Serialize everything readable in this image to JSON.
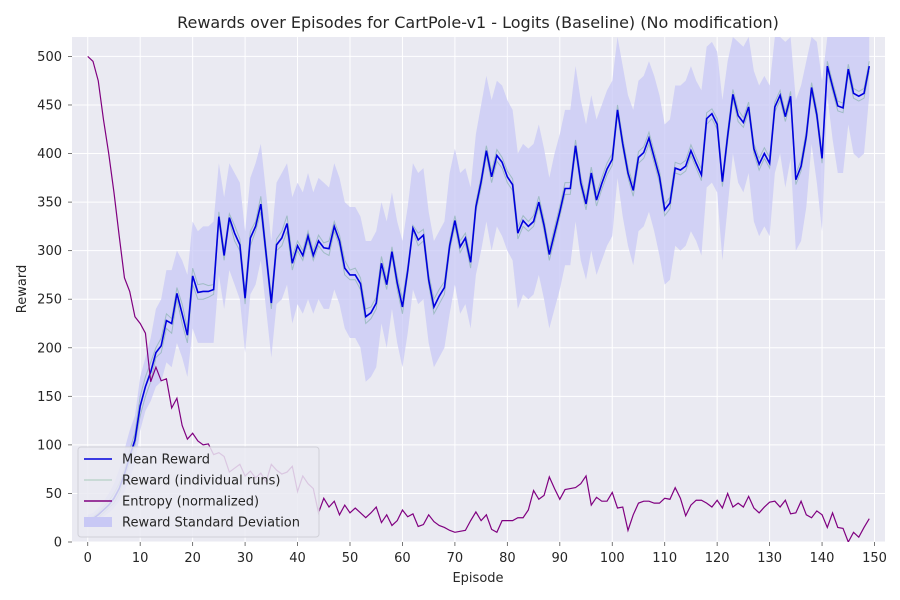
{
  "chart_data": {
    "type": "line",
    "title": "Rewards over Episodes for CartPole-v1 - Logits (Baseline) (No modification)",
    "xlabel": "Episode",
    "ylabel": "Reward",
    "xlim": [
      -3,
      152
    ],
    "ylim": [
      0,
      520
    ],
    "xticks": [
      0,
      10,
      20,
      30,
      40,
      50,
      60,
      70,
      80,
      90,
      100,
      110,
      120,
      130,
      140,
      150
    ],
    "yticks": [
      0,
      50,
      100,
      150,
      200,
      250,
      300,
      350,
      400,
      450,
      500
    ],
    "grid": true,
    "legend_position": "lower-left",
    "colors": {
      "background": "#eaeaf2",
      "grid": "#ffffff",
      "mean": "#0000dd",
      "runs": "#2e8b57",
      "entropy": "#800080",
      "std_fill": "#c8c8f5"
    },
    "legend": [
      {
        "label": "Mean Reward",
        "kind": "line",
        "color": "#0000dd"
      },
      {
        "label": "Reward (individual runs)",
        "kind": "thin-line",
        "color": "#2e8b57"
      },
      {
        "label": "Entropy (normalized)",
        "kind": "line",
        "color": "#800080"
      },
      {
        "label": "Reward Standard Deviation",
        "kind": "patch",
        "color": "#c8c8f5"
      }
    ],
    "episodes_count": 150,
    "series": [
      {
        "name": "Mean Reward",
        "values": [
          22,
          24,
          28,
          33,
          38,
          45,
          55,
          70,
          88,
          105,
          140,
          160,
          175,
          195,
          202,
          228,
          225,
          256,
          235,
          213,
          274,
          257,
          258,
          258,
          260,
          335,
          295,
          334,
          318,
          306,
          251,
          313,
          325,
          348,
          297,
          246,
          306,
          313,
          328,
          287,
          305,
          295,
          315,
          295,
          310,
          303,
          302,
          325,
          310,
          282,
          275,
          275,
          266,
          232,
          236,
          246,
          287,
          265,
          299,
          267,
          242,
          279,
          323,
          311,
          316,
          270,
          242,
          253,
          262,
          305,
          331,
          304,
          313,
          288,
          345,
          371,
          403,
          376,
          398,
          391,
          376,
          368,
          318,
          331,
          325,
          330,
          350,
          326,
          296,
          318,
          340,
          364,
          364,
          408,
          370,
          348,
          380,
          352,
          369,
          384,
          394,
          445,
          410,
          380,
          362,
          396,
          401,
          416,
          396,
          376,
          342,
          349,
          385,
          383,
          387,
          403,
          390,
          378,
          436,
          441,
          430,
          371,
          418,
          461,
          439,
          432,
          448,
          405,
          389,
          400,
          390,
          448,
          460,
          438,
          459,
          373,
          387,
          418,
          468,
          440,
          395,
          490,
          469,
          449,
          447,
          487,
          462,
          459,
          462,
          490
        ]
      },
      {
        "name": "Reward Standard Deviation",
        "upper": [
          28,
          30,
          35,
          42,
          50,
          60,
          75,
          95,
          115,
          130,
          170,
          190,
          210,
          240,
          250,
          280,
          280,
          300,
          290,
          275,
          330,
          320,
          325,
          325,
          330,
          390,
          355,
          390,
          380,
          370,
          320,
          375,
          390,
          410,
          360,
          310,
          370,
          380,
          390,
          355,
          370,
          360,
          380,
          360,
          375,
          370,
          365,
          390,
          375,
          350,
          345,
          345,
          335,
          310,
          310,
          320,
          350,
          330,
          360,
          330,
          310,
          345,
          390,
          380,
          385,
          340,
          310,
          320,
          330,
          380,
          405,
          380,
          385,
          365,
          420,
          450,
          480,
          455,
          475,
          470,
          455,
          445,
          400,
          410,
          405,
          410,
          430,
          405,
          375,
          400,
          420,
          445,
          445,
          490,
          455,
          430,
          460,
          435,
          450,
          465,
          475,
          520,
          490,
          460,
          445,
          475,
          480,
          495,
          480,
          460,
          430,
          435,
          470,
          470,
          475,
          490,
          475,
          465,
          510,
          515,
          505,
          455,
          495,
          520,
          515,
          510,
          520,
          485,
          470,
          480,
          470,
          520,
          520,
          515,
          520,
          455,
          470,
          495,
          520,
          515,
          475,
          520,
          520,
          520,
          520,
          520,
          520,
          520,
          520,
          520
        ],
        "lower": [
          18,
          20,
          23,
          26,
          30,
          35,
          42,
          52,
          65,
          80,
          115,
          135,
          145,
          160,
          165,
          185,
          180,
          205,
          190,
          170,
          220,
          205,
          205,
          205,
          205,
          275,
          240,
          280,
          265,
          250,
          195,
          255,
          265,
          290,
          240,
          190,
          245,
          250,
          265,
          225,
          245,
          235,
          250,
          235,
          250,
          240,
          240,
          260,
          245,
          220,
          210,
          210,
          200,
          165,
          170,
          180,
          225,
          200,
          240,
          205,
          180,
          215,
          260,
          245,
          250,
          205,
          180,
          190,
          200,
          235,
          265,
          235,
          245,
          220,
          275,
          300,
          330,
          300,
          325,
          315,
          300,
          290,
          240,
          255,
          250,
          255,
          275,
          250,
          220,
          240,
          260,
          285,
          285,
          330,
          290,
          270,
          300,
          275,
          290,
          305,
          315,
          375,
          335,
          305,
          285,
          320,
          325,
          340,
          320,
          295,
          265,
          270,
          305,
          300,
          305,
          320,
          310,
          295,
          365,
          370,
          360,
          290,
          345,
          400,
          370,
          360,
          380,
          330,
          315,
          325,
          315,
          380,
          400,
          365,
          395,
          300,
          310,
          345,
          410,
          370,
          320,
          460,
          415,
          380,
          380,
          430,
          400,
          395,
          400,
          460
        ]
      },
      {
        "name": "Reward (individual runs)",
        "runs": [
          [
            20,
            22,
            25,
            30,
            35,
            40,
            50,
            65,
            82,
            100,
            130,
            150,
            165,
            190,
            195,
            220,
            215,
            250,
            225,
            205,
            265,
            250,
            250,
            252,
            255,
            330,
            290,
            330,
            310,
            300,
            245,
            305,
            320,
            340,
            290,
            240,
            300,
            305,
            320,
            280,
            300,
            290,
            310,
            290,
            305,
            298,
            295,
            320,
            305,
            275,
            270,
            270,
            260,
            225,
            230,
            240,
            280,
            260,
            295,
            260,
            235,
            275,
            320,
            305,
            310,
            265,
            235,
            245,
            255,
            300,
            325,
            298,
            308,
            282,
            340,
            365,
            398,
            370,
            392,
            385,
            370,
            362,
            312,
            325,
            320,
            325,
            345,
            320,
            290,
            312,
            335,
            358,
            358,
            402,
            365,
            342,
            375,
            346,
            363,
            378,
            388,
            440,
            405,
            375,
            356,
            390,
            395,
            410,
            390,
            370,
            336,
            343,
            380,
            378,
            382,
            398,
            385,
            372,
            430,
            436,
            425,
            366,
            412,
            456,
            433,
            427,
            443,
            400,
            383,
            395,
            385,
            443,
            455,
            433,
            454,
            368,
            382,
            413,
            463,
            435,
            390,
            485,
            464,
            444,
            442,
            482,
            457,
            454,
            457,
            485
          ],
          [
            24,
            26,
            30,
            36,
            42,
            50,
            60,
            75,
            95,
            112,
            150,
            170,
            185,
            200,
            210,
            235,
            230,
            262,
            245,
            220,
            282,
            265,
            266,
            264,
            265,
            340,
            300,
            338,
            326,
            312,
            258,
            320,
            330,
            356,
            304,
            252,
            312,
            320,
            336,
            294,
            310,
            300,
            320,
            300,
            316,
            308,
            310,
            330,
            316,
            290,
            280,
            282,
            272,
            240,
            242,
            252,
            294,
            270,
            304,
            274,
            250,
            284,
            326,
            318,
            322,
            276,
            250,
            260,
            268,
            310,
            336,
            310,
            318,
            294,
            350,
            376,
            408,
            382,
            404,
            396,
            382,
            374,
            324,
            336,
            330,
            336,
            356,
            332,
            302,
            324,
            346,
            370,
            370,
            414,
            376,
            354,
            386,
            358,
            375,
            390,
            400,
            450,
            416,
            386,
            368,
            402,
            407,
            422,
            402,
            382,
            348,
            355,
            391,
            389,
            393,
            409,
            396,
            384,
            442,
            446,
            436,
            376,
            424,
            466,
            445,
            437,
            453,
            410,
            395,
            406,
            396,
            453,
            465,
            443,
            464,
            379,
            393,
            424,
            473,
            446,
            401,
            495,
            474,
            454,
            452,
            492,
            467,
            464,
            467,
            495
          ]
        ]
      },
      {
        "name": "Entropy (normalized)",
        "values": [
          500,
          495,
          475,
          435,
          400,
          360,
          315,
          272,
          258,
          232,
          225,
          215,
          165,
          180,
          166,
          168,
          138,
          148,
          120,
          106,
          112,
          104,
          100,
          101,
          90,
          92,
          88,
          72,
          76,
          80,
          68,
          73,
          66,
          71,
          62,
          80,
          74,
          70,
          72,
          78,
          52,
          68,
          60,
          55,
          30,
          45,
          36,
          42,
          28,
          38,
          30,
          35,
          30,
          25,
          30,
          36,
          20,
          28,
          17,
          22,
          33,
          26,
          29,
          16,
          18,
          28,
          21,
          17,
          15,
          12,
          10,
          11,
          12,
          22,
          31,
          22,
          28,
          13,
          10,
          22,
          22,
          22,
          25,
          25,
          33,
          53,
          44,
          48,
          67,
          55,
          44,
          54,
          55,
          56,
          60,
          68,
          38,
          46,
          42,
          42,
          51,
          35,
          36,
          12,
          28,
          40,
          42,
          42,
          40,
          40,
          45,
          44,
          56,
          45,
          27,
          38,
          43,
          43,
          40,
          36,
          43,
          35,
          50,
          36,
          40,
          36,
          47,
          35,
          30,
          36,
          41,
          42,
          36,
          43,
          29,
          30,
          42,
          28,
          25,
          32,
          28,
          15,
          30,
          15,
          14,
          0,
          10,
          5,
          15,
          24
        ]
      }
    ]
  }
}
